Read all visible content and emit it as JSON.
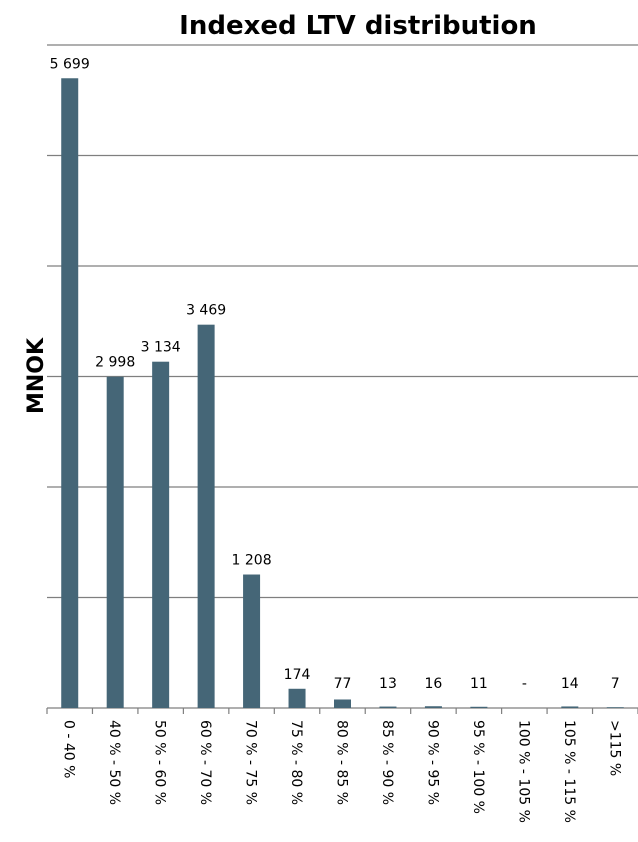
{
  "chart_data": {
    "type": "bar",
    "title": "Indexed LTV distribution",
    "ylabel": "MNOK",
    "xlabel": "",
    "ylim": [
      0,
      6000
    ],
    "grid": true,
    "y_tick_step": 1000,
    "y_tick_labels_visible": false,
    "bar_color": "#456677",
    "categories": [
      "0 - 40 %",
      "40 % - 50 %",
      "50 % - 60 %",
      "60 % - 70 %",
      "70 % - 75 %",
      "75 % - 80 %",
      "80 % - 85 %",
      "85 % - 90 %",
      "90 % - 95 %",
      "95 % - 100 %",
      "100 % - 105 %",
      "105 % - 115 %",
      ">115 %"
    ],
    "values": [
      5699,
      2998,
      3134,
      3469,
      1208,
      174,
      77,
      13,
      16,
      11,
      0,
      14,
      7
    ],
    "data_labels": [
      "5 699",
      "2 998",
      "3 134",
      "3 469",
      "1 208",
      "174",
      "77",
      "13",
      "16",
      "11",
      "-",
      "14",
      "7"
    ]
  }
}
